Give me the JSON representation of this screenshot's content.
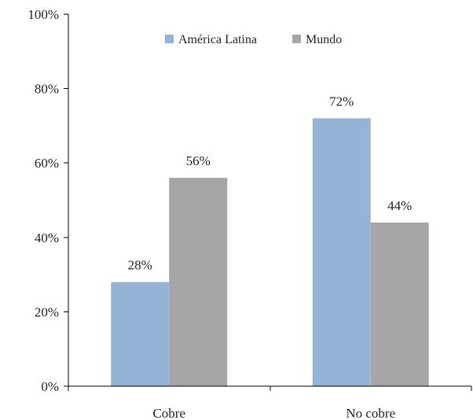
{
  "chart_data": {
    "type": "bar",
    "categories": [
      "Cobre",
      "No cobre"
    ],
    "series": [
      {
        "name": "América Latina",
        "values": [
          28,
          72
        ],
        "color": "#95b3d7"
      },
      {
        "name": "Mundo",
        "values": [
          56,
          44
        ],
        "color": "#a6a6a6"
      }
    ],
    "data_labels": [
      [
        "28%",
        "72%"
      ],
      [
        "56%",
        "44%"
      ]
    ],
    "yticks": [
      0,
      20,
      40,
      60,
      80,
      100
    ],
    "ytick_labels": [
      "0%",
      "20%",
      "40%",
      "60%",
      "80%",
      "100%"
    ],
    "ylim": [
      0,
      100
    ],
    "title": "",
    "xlabel": "",
    "ylabel": "",
    "grid": false,
    "legend_position": "top-center"
  }
}
